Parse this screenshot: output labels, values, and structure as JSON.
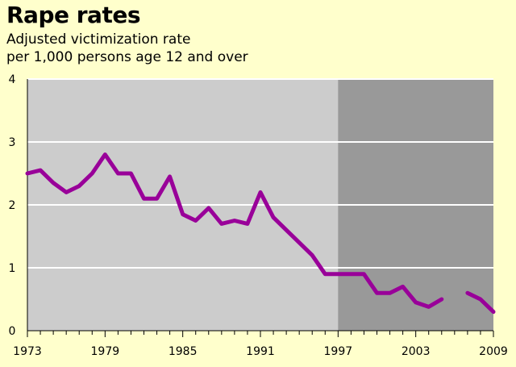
{
  "chart_data": {
    "type": "line",
    "title": "Rape rates",
    "subtitle_lines": [
      "Adjusted victimization rate",
      "per 1,000 persons age 12 and over"
    ],
    "x_tick_labels": [
      "1973",
      "1979",
      "1985",
      "1991",
      "1997",
      "2003",
      "2009"
    ],
    "y_tick_labels": [
      "0",
      "1",
      "2",
      "3",
      "4"
    ],
    "xlim": [
      1973,
      2009
    ],
    "ylim": [
      0,
      4
    ],
    "shaded_from": 1997,
    "grid": "horizontal",
    "colors": {
      "line": "#990099",
      "plot_bg": "#cccccc",
      "shaded_bg": "#999999",
      "page_bg": "#ffffcc",
      "grid": "#ffffff"
    },
    "segments": [
      {
        "x": [
          1973,
          1974,
          1975,
          1976,
          1977,
          1978,
          1979,
          1980,
          1981,
          1982,
          1983,
          1984,
          1985,
          1986,
          1987,
          1988,
          1989,
          1990,
          1991,
          1992,
          1993,
          1994,
          1995,
          1996,
          1997,
          1998,
          1999,
          2000,
          2001,
          2002,
          2003,
          2004,
          2005
        ],
        "y": [
          2.5,
          2.55,
          2.35,
          2.2,
          2.3,
          2.5,
          2.8,
          2.5,
          2.5,
          2.1,
          2.1,
          2.45,
          1.85,
          1.75,
          1.95,
          1.7,
          1.75,
          1.7,
          2.2,
          1.8,
          1.6,
          1.4,
          1.2,
          0.9,
          0.9,
          0.9,
          0.9,
          0.6,
          0.6,
          0.7,
          0.45,
          0.38,
          0.5
        ]
      },
      {
        "x": [
          2007,
          2008,
          2009
        ],
        "y": [
          0.6,
          0.5,
          0.3
        ]
      }
    ]
  }
}
